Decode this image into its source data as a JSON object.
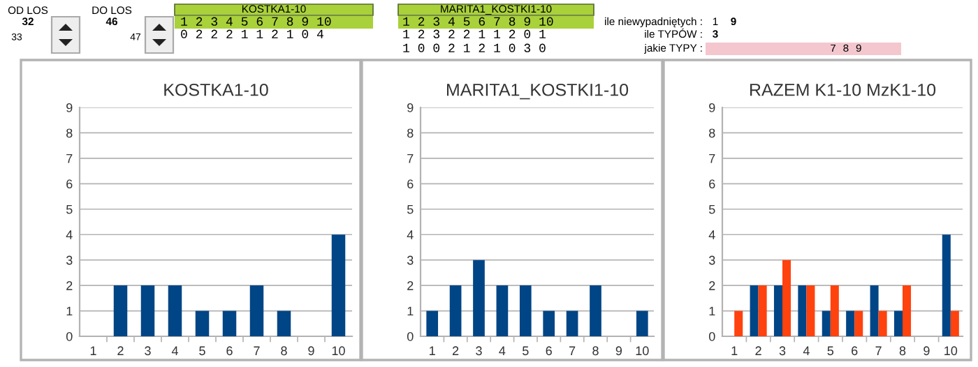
{
  "chart_data": [
    {
      "type": "other",
      "annotations": [
        "OD LOS",
        "32",
        "33",
        "DO LOS",
        "46",
        "47",
        "KOSTKA1-10",
        "1 2 3 4 5 6 7 8 9 10",
        "0 2 2 2 1 1 2 1 0 4",
        "MARITA1_KOSTKI1-10",
        "1 2 3 4 5 6 7 8 9 10",
        "1 2 3 2 2 1 1 2 0 1",
        "1 0 0 2 1 2 1 0 3 0",
        "ile niewypadniętych :",
        "1",
        "9",
        "ile TYPÓW :",
        "3",
        "jakie TYPY :",
        "7 8 9"
      ]
    },
    {
      "type": "bar",
      "title": "KOSTKA1-10",
      "categories": [
        "1",
        "2",
        "3",
        "4",
        "5",
        "6",
        "7",
        "8",
        "9",
        "10"
      ],
      "values": [
        0,
        2,
        2,
        2,
        1,
        1,
        2,
        1,
        0,
        4
      ],
      "color": "#004586",
      "ylim": [
        0,
        9
      ],
      "yticks": [
        0,
        1,
        2,
        3,
        4,
        5,
        6,
        7,
        8,
        9
      ],
      "grid": "y"
    },
    {
      "type": "bar",
      "title": "MARITA1_KOSTKI1-10",
      "categories": [
        "1",
        "2",
        "3",
        "4",
        "5",
        "6",
        "7",
        "8",
        "9",
        "10"
      ],
      "values": [
        1,
        2,
        3,
        2,
        2,
        1,
        1,
        2,
        0,
        1
      ],
      "color": "#004586",
      "ylim": [
        0,
        9
      ],
      "yticks": [
        0,
        1,
        2,
        3,
        4,
        5,
        6,
        7,
        8,
        9
      ],
      "grid": "y"
    },
    {
      "type": "bar",
      "title": "RAZEM K1-10 MzK1-10",
      "categories": [
        "1",
        "2",
        "3",
        "4",
        "5",
        "6",
        "7",
        "8",
        "9",
        "10"
      ],
      "series": [
        {
          "color": "#004586",
          "values": [
            0,
            2,
            2,
            2,
            1,
            1,
            2,
            1,
            0,
            4
          ]
        },
        {
          "color": "#ff420e",
          "values": [
            1,
            2,
            3,
            2,
            2,
            1,
            1,
            2,
            0,
            1
          ]
        }
      ],
      "ylim": [
        0,
        9
      ],
      "yticks": [
        0,
        1,
        2,
        3,
        4,
        5,
        6,
        7,
        8,
        9
      ],
      "grid": "y"
    }
  ]
}
